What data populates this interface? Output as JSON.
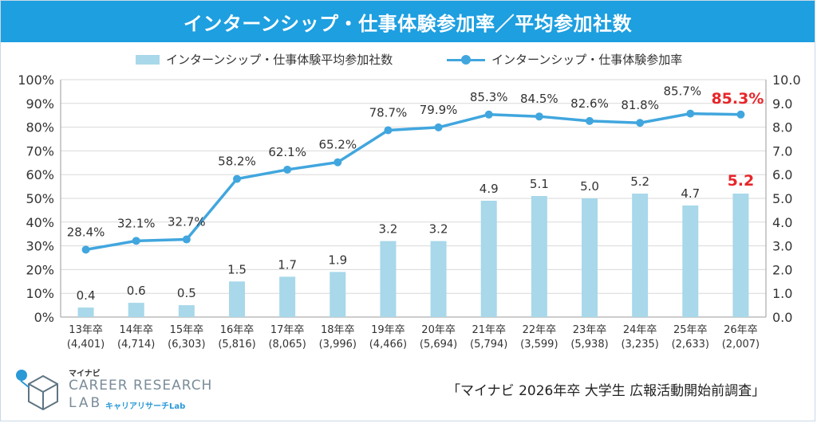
{
  "title": "インターンシップ・仕事体験参加率／平均参加社数",
  "legend": {
    "bar_label": "インターンシップ・仕事体験平均参加社数",
    "line_label": "インターンシップ・仕事体験参加率"
  },
  "logo": {
    "sub": "マイナビ",
    "main1": "CAREER RESEARCH",
    "main2": "LAB",
    "kana": "キャリアリサーチLab"
  },
  "source": "「マイナビ 2026年卒 大学生 広報活動開始前調査」",
  "colors": {
    "title_bg": "#1d9fe0",
    "bar": "#a8d8ea",
    "line": "#41a6de",
    "highlight": "#e8262a"
  },
  "chart_data": {
    "type": "bar",
    "categories": [
      "13年卒",
      "14年卒",
      "15年卒",
      "16年卒",
      "17年卒",
      "18年卒",
      "19年卒",
      "20年卒",
      "21年卒",
      "22年卒",
      "23年卒",
      "24年卒",
      "25年卒",
      "26年卒"
    ],
    "sample_sizes": [
      "(4,401)",
      "(4,714)",
      "(6,303)",
      "(5,816)",
      "(8,065)",
      "(3,996)",
      "(4,466)",
      "(5,694)",
      "(5,794)",
      "(3,599)",
      "(5,938)",
      "(3,235)",
      "(2,633)",
      "(2,007)"
    ],
    "series": [
      {
        "name": "インターンシップ・仕事体験平均参加社数",
        "type": "bar",
        "axis": "right",
        "values": [
          0.4,
          0.6,
          0.5,
          1.5,
          1.7,
          1.9,
          3.2,
          3.2,
          4.9,
          5.1,
          5.0,
          5.2,
          4.7,
          5.2
        ],
        "labels": [
          "0.4",
          "0.6",
          "0.5",
          "1.5",
          "1.7",
          "1.9",
          "3.2",
          "3.2",
          "4.9",
          "5.1",
          "5.0",
          "5.2",
          "4.7",
          "5.2"
        ]
      },
      {
        "name": "インターンシップ・仕事体験参加率",
        "type": "line",
        "axis": "left",
        "values": [
          28.4,
          32.1,
          32.7,
          58.2,
          62.1,
          65.2,
          78.7,
          79.9,
          85.3,
          84.5,
          82.6,
          81.8,
          85.7,
          85.3
        ],
        "labels": [
          "28.4%",
          "32.1%",
          "32.7%",
          "58.2%",
          "62.1%",
          "65.2%",
          "78.7%",
          "79.9%",
          "85.3%",
          "84.5%",
          "82.6%",
          "81.8%",
          "85.7%",
          "85.3%"
        ]
      }
    ],
    "y_left": {
      "range": [
        0,
        100
      ],
      "ticks": [
        "0%",
        "10%",
        "20%",
        "30%",
        "40%",
        "50%",
        "60%",
        "70%",
        "80%",
        "90%",
        "100%"
      ]
    },
    "y_right": {
      "range": [
        0,
        10
      ],
      "ticks": [
        "0.0",
        "1.0",
        "2.0",
        "3.0",
        "4.0",
        "5.0",
        "6.0",
        "7.0",
        "8.0",
        "9.0",
        "10.0"
      ]
    },
    "grid": "horizontal",
    "legend_position": "top",
    "highlight_last": true
  }
}
